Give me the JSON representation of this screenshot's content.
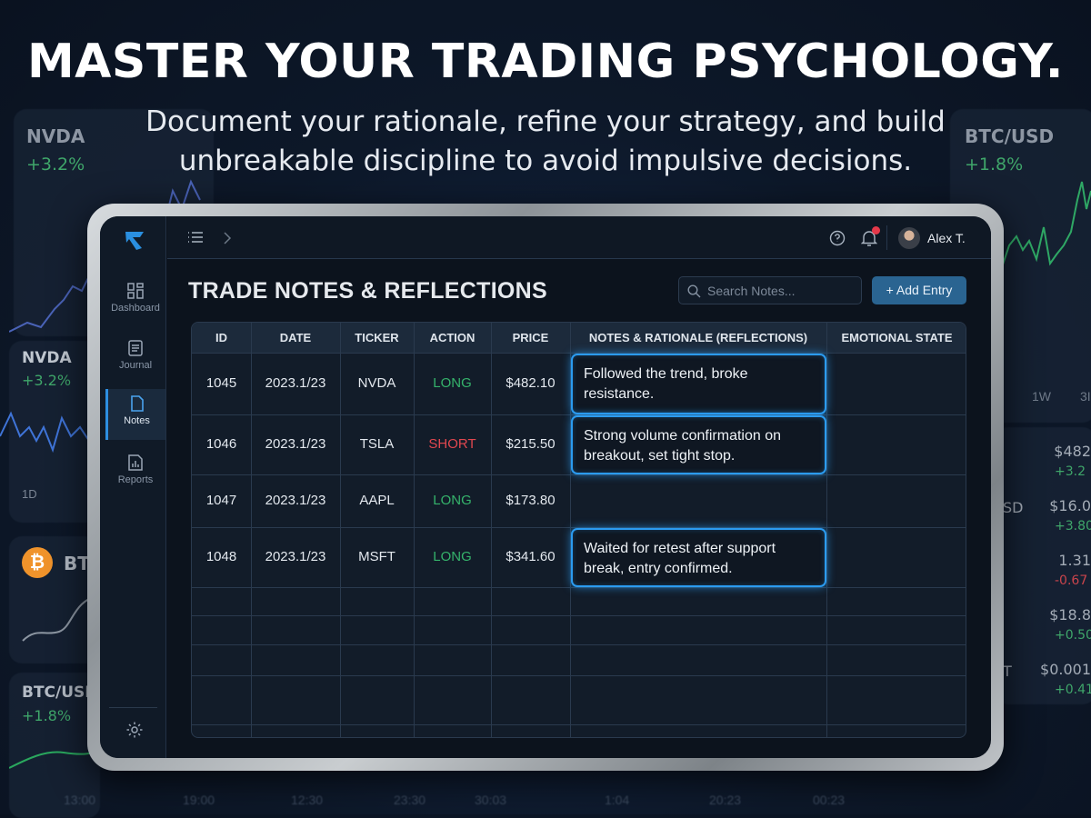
{
  "hero": {
    "headline": "MASTER YOUR TRADING PSYCHOLOGY.",
    "subtitle_line1": "Document your rationale, refine your strategy, and build",
    "subtitle_line2": "unbreakable discipline to avoid impulsive decisions."
  },
  "background": {
    "left_cards": [
      {
        "ticker": "NVDA",
        "change": "+3.2%"
      },
      {
        "ticker": "NVDA",
        "change": "+3.2%",
        "range": "1D"
      },
      {
        "ticker": "BT"
      },
      {
        "ticker": "BTC/USI",
        "change": "+1.8%"
      }
    ],
    "right_card": {
      "ticker": "BTC/USD",
      "change": "+1.8%",
      "ranges": [
        "1W",
        "3I"
      ]
    },
    "right_list": [
      {
        "name": "",
        "price": "$482",
        "change": "+3.2"
      },
      {
        "name": "SD",
        "price": "$16.0",
        "change": "+3.80"
      },
      {
        "name": "",
        "price": "1.31",
        "change": "-0.67"
      },
      {
        "name": "",
        "price": "$18.8",
        "change": "+0.50"
      },
      {
        "name": "T",
        "price": "$0.001",
        "change": "+0.41"
      }
    ],
    "time_ticks": [
      "13:00",
      "19:00",
      "12:30",
      "23:30",
      "30:03",
      "1:04",
      "20:23",
      "00:23"
    ],
    "colors": {
      "up": "#3fa66a",
      "down": "#c9444c"
    }
  },
  "app": {
    "sidebar": {
      "items": [
        {
          "label": "Dashboard",
          "icon": "grid-icon"
        },
        {
          "label": "Journal",
          "icon": "journal-icon"
        },
        {
          "label": "Notes",
          "icon": "notes-icon",
          "active": true
        },
        {
          "label": "Reports",
          "icon": "reports-icon"
        }
      ],
      "settings_icon": "gear-icon"
    },
    "topbar": {
      "user": "Alex T.",
      "notification_dot": true
    },
    "page_title": "TRADE NOTES & REFLECTIONS",
    "search": {
      "placeholder": "Search Notes..."
    },
    "add_button": "+ Add Entry",
    "table": {
      "columns": [
        "ID",
        "DATE",
        "TICKER",
        "ACTION",
        "PRICE",
        "NOTES & RATIONALE (REFLECTIONS)",
        "EMOTIONAL STATE"
      ],
      "rows": [
        {
          "id": "1045",
          "date": "2023.1/23",
          "ticker": "NVDA",
          "action": "LONG",
          "price": "$482.10",
          "note": "Followed the trend, broke resistance.",
          "emotion": ""
        },
        {
          "id": "1046",
          "date": "2023.1/23",
          "ticker": "TSLA",
          "action": "SHORT",
          "price": "$215.50",
          "note": "Strong volume confirmation on breakout, set tight stop.",
          "emotion": ""
        },
        {
          "id": "1047",
          "date": "2023.1/23",
          "ticker": "AAPL",
          "action": "LONG",
          "price": "$173.80",
          "note": "",
          "emotion": ""
        },
        {
          "id": "1048",
          "date": "2023.1/23",
          "ticker": "MSFT",
          "action": "LONG",
          "price": "$341.60",
          "note": "Waited for retest after support break, entry confirmed.",
          "emotion": ""
        }
      ]
    },
    "colors": {
      "accent": "#2b9bf0",
      "long": "#35b36b",
      "short": "#e0474f",
      "button": "#2a6491"
    }
  }
}
